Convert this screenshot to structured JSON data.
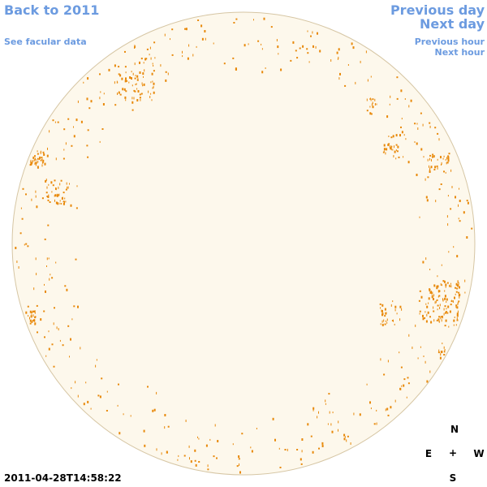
{
  "nav": {
    "back": "Back to 2011",
    "facular": "See facular data",
    "prev_day": "Previous day",
    "next_day": "Next day",
    "prev_hour": "Previous hour",
    "next_hour": "Next hour"
  },
  "timestamp": "2011-04-28T14:58:22",
  "compass": {
    "n": "N",
    "e": "E",
    "center": "+",
    "w": "W",
    "s": "S"
  }
}
